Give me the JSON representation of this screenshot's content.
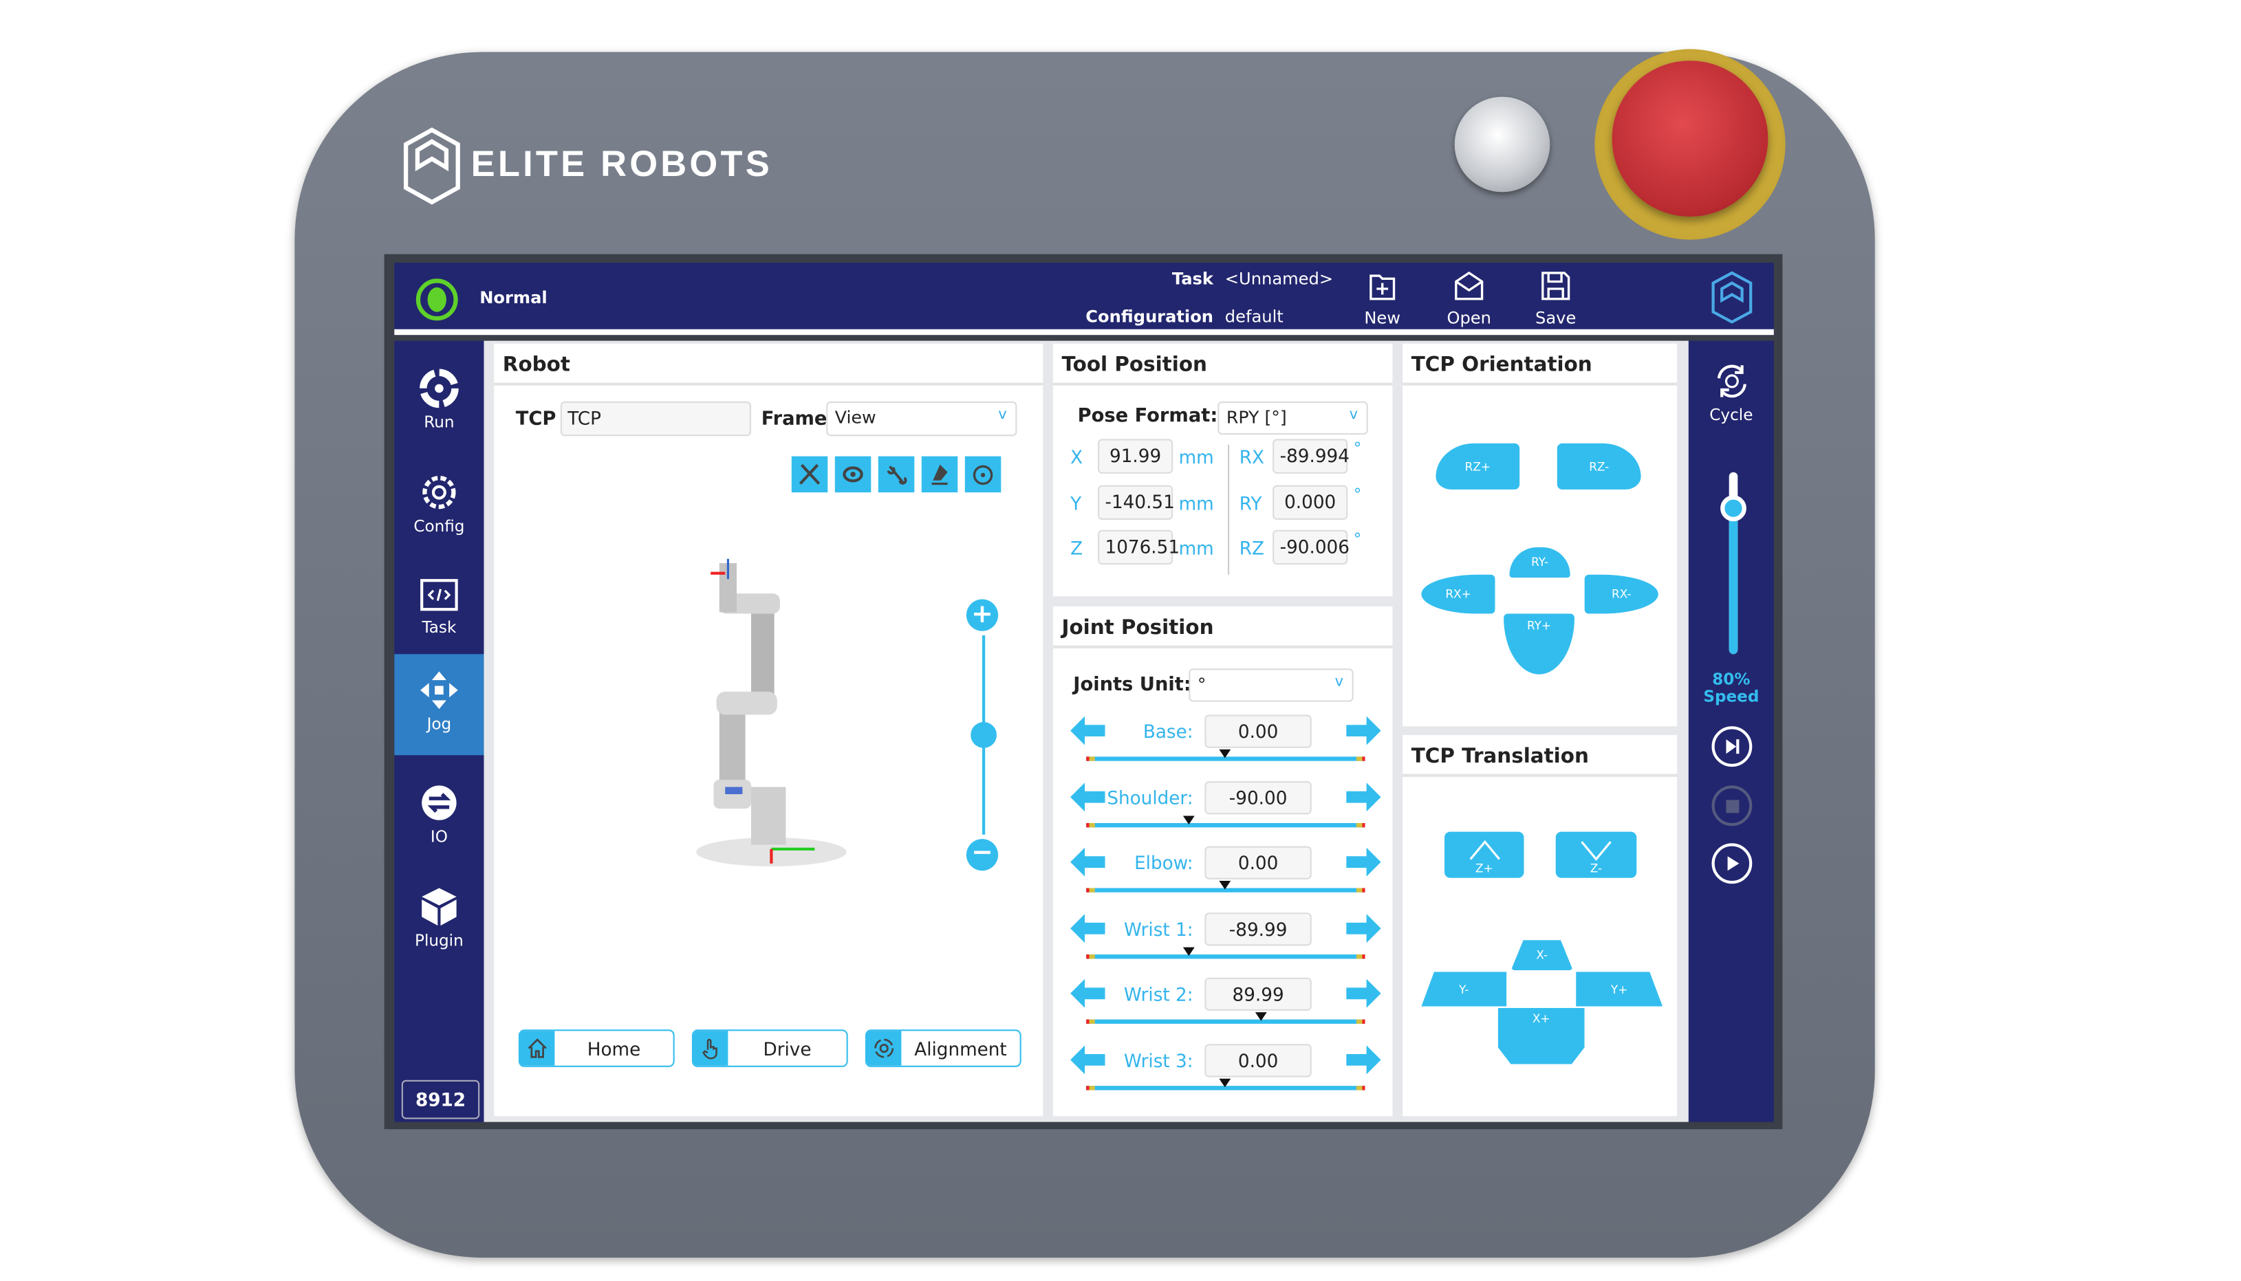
{
  "brand": {
    "name": "ELITE ROBOTS"
  },
  "header": {
    "status": "Normal",
    "status_color": "#5fd12a",
    "task_label": "Task",
    "task_value": "<Unnamed>",
    "config_label": "Configuration",
    "config_value": "default",
    "new_label": "New",
    "open_label": "Open",
    "save_label": "Save"
  },
  "sidebar": {
    "items": [
      {
        "label": "Run",
        "icon": "run-icon"
      },
      {
        "label": "Config",
        "icon": "gear-icon"
      },
      {
        "label": "Task",
        "icon": "code-icon"
      },
      {
        "label": "Jog",
        "icon": "move-icon",
        "active": true
      },
      {
        "label": "IO",
        "icon": "io-icon"
      },
      {
        "label": "Plugin",
        "icon": "cube-icon"
      }
    ],
    "badge": "8912"
  },
  "robot": {
    "title": "Robot",
    "tcp_label": "TCP",
    "tcp_value": "TCP",
    "frame_label": "Frame",
    "frame_value": "View",
    "view_tools": [
      "tool-icon",
      "eye-icon",
      "link-icon",
      "base-icon",
      "rotate-icon"
    ],
    "home_label": "Home",
    "drive_label": "Drive",
    "alignment_label": "Alignment"
  },
  "tool_position": {
    "title": "Tool Position",
    "pose_format_label": "Pose Format:",
    "pose_format_value": "RPY [°]",
    "unit_mm": "mm",
    "unit_deg": "°",
    "rows": [
      {
        "axis": "X",
        "value": "91.99",
        "raxis": "RX",
        "rvalue": "-89.994"
      },
      {
        "axis": "Y",
        "value": "-140.51",
        "raxis": "RY",
        "rvalue": "0.000"
      },
      {
        "axis": "Z",
        "value": "1076.51",
        "raxis": "RZ",
        "rvalue": "-90.006"
      }
    ]
  },
  "joint_position": {
    "title": "Joint Position",
    "unit_label": "Joints Unit:",
    "unit_value": "°",
    "joints": [
      {
        "label": "Base:",
        "value": "0.00",
        "pos": 0
      },
      {
        "label": "Shoulder:",
        "value": "-90.00",
        "pos": -90
      },
      {
        "label": "Elbow:",
        "value": "0.00",
        "pos": 0
      },
      {
        "label": "Wrist 1:",
        "value": "-89.99",
        "pos": -89.99
      },
      {
        "label": "Wrist 2:",
        "value": "89.99",
        "pos": 89.99
      },
      {
        "label": "Wrist 3:",
        "value": "0.00",
        "pos": 0
      }
    ]
  },
  "tcp_orientation": {
    "title": "TCP Orientation",
    "buttons": [
      "RZ+",
      "RZ-",
      "RY-",
      "RX+",
      "RX-",
      "RY+"
    ]
  },
  "tcp_translation": {
    "title": "TCP Translation",
    "buttons": [
      "Z+",
      "Z-",
      "X-",
      "Y-",
      "Y+",
      "X+"
    ]
  },
  "right_sidebar": {
    "cycle_label": "Cycle",
    "speed_percent": "80%",
    "speed_label": "Speed",
    "speed_value": 80
  },
  "colors": {
    "navy": "#22266e",
    "accent": "#33bdee",
    "estop": "#c8313a"
  }
}
